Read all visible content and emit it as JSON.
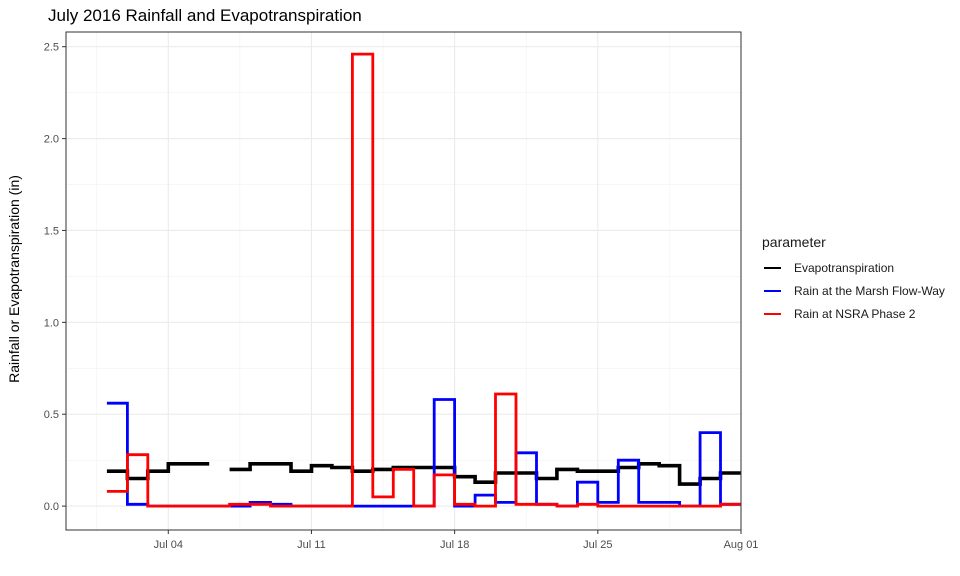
{
  "chart_data": {
    "type": "line",
    "title": "July 2016 Rainfall and Evapotranspiration",
    "xlabel": "",
    "ylabel": "Rainfall or Evapotranspiration (in)",
    "x_ticks": [
      {
        "date": "2016-07-04",
        "label": "Jul 04"
      },
      {
        "date": "2016-07-11",
        "label": "Jul 11"
      },
      {
        "date": "2016-07-18",
        "label": "Jul 18"
      },
      {
        "date": "2016-07-25",
        "label": "Jul 25"
      },
      {
        "date": "2016-08-01",
        "label": "Aug 01"
      }
    ],
    "y_ticks": [
      "0.0",
      "0.5",
      "1.0",
      "1.5",
      "2.0",
      "2.5"
    ],
    "xlim": [
      "2016-06-29",
      "2016-08-01"
    ],
    "ylim": [
      -0.13,
      2.58
    ],
    "grid": true,
    "legend": {
      "title": "parameter",
      "position": "right"
    },
    "x": [
      "2016-07-01",
      "2016-07-02",
      "2016-07-03",
      "2016-07-04",
      "2016-07-05",
      "2016-07-06",
      "2016-07-07",
      "2016-07-08",
      "2016-07-09",
      "2016-07-10",
      "2016-07-11",
      "2016-07-12",
      "2016-07-13",
      "2016-07-14",
      "2016-07-15",
      "2016-07-16",
      "2016-07-17",
      "2016-07-18",
      "2016-07-19",
      "2016-07-20",
      "2016-07-21",
      "2016-07-22",
      "2016-07-23",
      "2016-07-24",
      "2016-07-25",
      "2016-07-26",
      "2016-07-27",
      "2016-07-28",
      "2016-07-29",
      "2016-07-30",
      "2016-07-31"
    ],
    "series": [
      {
        "name": "Evapotranspiration",
        "color": "#000000",
        "values": [
          0.19,
          0.15,
          0.19,
          0.23,
          0.23,
          null,
          0.2,
          0.23,
          0.23,
          0.19,
          0.22,
          0.21,
          0.19,
          0.2,
          0.21,
          0.21,
          0.21,
          0.16,
          0.13,
          0.18,
          0.18,
          0.15,
          0.2,
          0.19,
          0.19,
          0.21,
          0.23,
          0.22,
          0.12,
          0.15,
          0.18
        ]
      },
      {
        "name": "Rain at the Marsh Flow-Way",
        "color": "#0000ff",
        "values": [
          0.56,
          0.01,
          0.0,
          0.0,
          0.0,
          0.0,
          0.0,
          0.02,
          0.01,
          0.0,
          0.0,
          0.0,
          0.0,
          0.0,
          0.0,
          0.0,
          0.58,
          0.0,
          0.06,
          0.02,
          0.29,
          0.01,
          0.0,
          0.13,
          0.02,
          0.25,
          0.02,
          0.02,
          0.0,
          0.4,
          0.01
        ]
      },
      {
        "name": "Rain at NSRA Phase 2",
        "color": "#ff0000",
        "values": [
          0.08,
          0.28,
          0.0,
          0.0,
          0.0,
          0.0,
          0.01,
          0.01,
          0.0,
          0.0,
          0.0,
          0.0,
          2.46,
          0.05,
          0.2,
          0.0,
          0.17,
          0.01,
          0.0,
          0.61,
          0.01,
          0.01,
          0.0,
          0.01,
          0.0,
          0.0,
          0.0,
          0.0,
          0.0,
          0.0,
          0.01
        ]
      }
    ]
  }
}
